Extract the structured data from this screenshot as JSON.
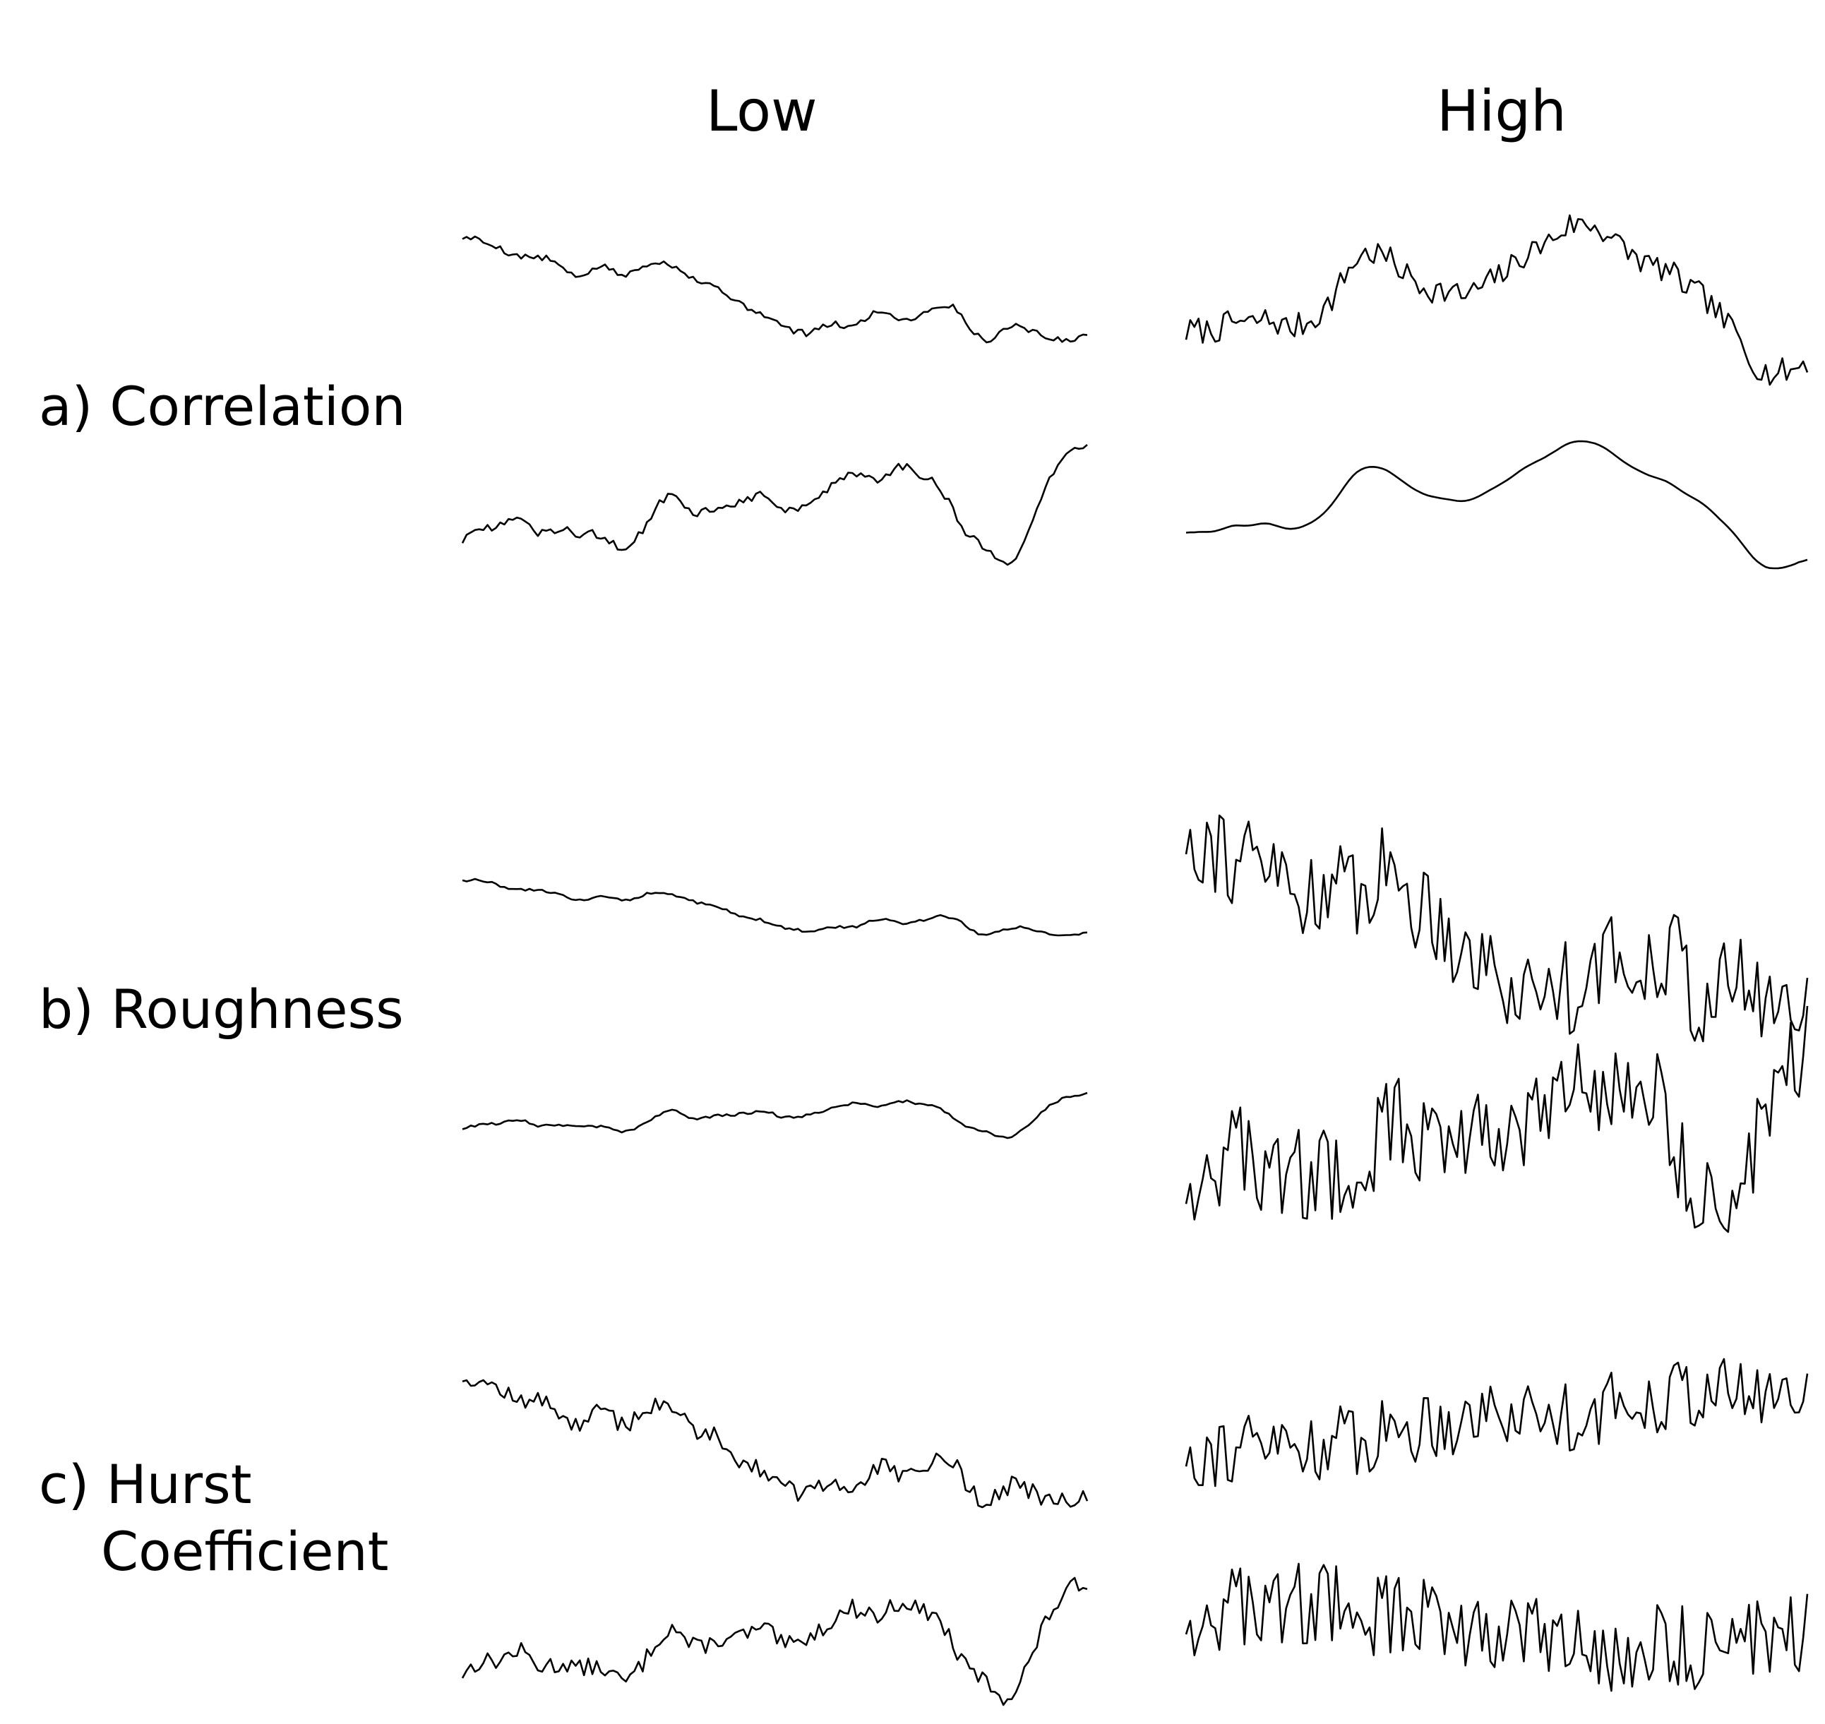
{
  "columns": {
    "low": "Low",
    "high": "High"
  },
  "rows": [
    {
      "id": "a",
      "marker": "a)",
      "label": "Correlation",
      "label_line2": ""
    },
    {
      "id": "b",
      "marker": "b)",
      "label": "Roughness",
      "label_line2": ""
    },
    {
      "id": "c",
      "marker": "c)",
      "label": "Hurst",
      "label_line2": "Coefficient"
    }
  ],
  "traces": [
    {
      "row": "a",
      "column": "low",
      "pair": [
        "top",
        "bottom"
      ],
      "similarity": "low",
      "roughness": "medium",
      "amplitude": "medium"
    },
    {
      "row": "a",
      "column": "high",
      "pair": [
        "top",
        "bottom"
      ],
      "similarity": "high",
      "roughness": "medium",
      "amplitude": "medium"
    },
    {
      "row": "b",
      "column": "low",
      "pair": [
        "top",
        "bottom"
      ],
      "roughness": "low",
      "amplitude": "small"
    },
    {
      "row": "b",
      "column": "high",
      "pair": [
        "top",
        "bottom"
      ],
      "roughness": "high",
      "amplitude": "large"
    },
    {
      "row": "c",
      "column": "low",
      "pair": [
        "top",
        "bottom"
      ],
      "hurst": "low",
      "character": "smooth persistent"
    },
    {
      "row": "c",
      "column": "high",
      "pair": [
        "top",
        "bottom"
      ],
      "hurst": "high",
      "character": "jagged anti-persistent"
    }
  ],
  "colors": {
    "trace": "#000000",
    "background": "#ffffff"
  }
}
